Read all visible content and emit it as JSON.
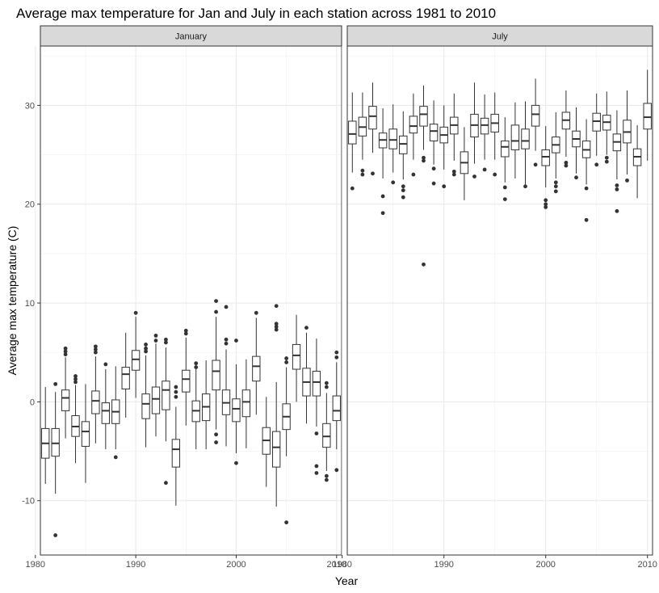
{
  "chart_data": {
    "type": "boxplot",
    "title": "Average max temperature for Jan and July in each station across 1981 to 2010",
    "xlabel": "Year",
    "ylabel": "Average max temperature (C)",
    "xlim": [
      1980.5,
      2010.5
    ],
    "ylim": [
      -15.5,
      36
    ],
    "x_ticks": [
      1980,
      1990,
      2000,
      2010
    ],
    "y_ticks": [
      -10,
      0,
      10,
      20,
      30
    ],
    "grid": true,
    "facets": [
      {
        "label": "January",
        "boxes": [
          {
            "year": 1981,
            "q1": -5.7,
            "median": -4.2,
            "q3": -2.7,
            "low": -8.3,
            "high": 1.5,
            "outliers": []
          },
          {
            "year": 1982,
            "q1": -5.5,
            "median": -4.2,
            "q3": -2.7,
            "low": -9.3,
            "high": 1.0,
            "outliers": [
              1.8,
              -13.5
            ]
          },
          {
            "year": 1983,
            "q1": -0.9,
            "median": 0.4,
            "q3": 1.2,
            "low": -3.7,
            "high": 4.5,
            "outliers": [
              4.8,
              5.1,
              5.4
            ]
          },
          {
            "year": 1984,
            "q1": -3.5,
            "median": -2.5,
            "q3": -1.4,
            "low": -6.2,
            "high": 1.7,
            "outliers": [
              2.0,
              2.3,
              2.6
            ]
          },
          {
            "year": 1985,
            "q1": -4.5,
            "median": -3.0,
            "q3": -2.0,
            "low": -8.2,
            "high": 1.8,
            "outliers": []
          },
          {
            "year": 1986,
            "q1": -1.2,
            "median": 0.1,
            "q3": 1.1,
            "low": -4.2,
            "high": 4.6,
            "outliers": [
              5.0,
              5.3,
              5.6
            ]
          },
          {
            "year": 1987,
            "q1": -2.2,
            "median": -0.9,
            "q3": -0.1,
            "low": -4.8,
            "high": 3.3,
            "outliers": [
              3.8
            ]
          },
          {
            "year": 1988,
            "q1": -2.2,
            "median": -1.0,
            "q3": 0.2,
            "low": -4.8,
            "high": 3.6,
            "outliers": [
              -5.6
            ]
          },
          {
            "year": 1989,
            "q1": 1.3,
            "median": 2.8,
            "q3": 3.5,
            "low": -1.6,
            "high": 7.0,
            "outliers": []
          },
          {
            "year": 1990,
            "q1": 3.2,
            "median": 4.3,
            "q3": 5.2,
            "low": 0.4,
            "high": 8.6,
            "outliers": [
              9.0
            ]
          },
          {
            "year": 1991,
            "q1": -1.7,
            "median": -0.2,
            "q3": 0.8,
            "low": -4.6,
            "high": 4.7,
            "outliers": [
              5.1,
              5.4,
              5.8
            ]
          },
          {
            "year": 1992,
            "q1": -1.2,
            "median": 0.3,
            "q3": 1.5,
            "low": -3.5,
            "high": 5.9,
            "outliers": [
              6.2,
              6.7
            ]
          },
          {
            "year": 1993,
            "q1": -0.8,
            "median": 1.2,
            "q3": 2.1,
            "low": -4.0,
            "high": 5.5,
            "outliers": [
              6.0,
              6.3,
              -8.2
            ]
          },
          {
            "year": 1994,
            "q1": -6.6,
            "median": -4.8,
            "q3": -3.8,
            "low": -10.5,
            "high": -0.5,
            "outliers": [
              0.5,
              1.0,
              1.5
            ]
          },
          {
            "year": 1995,
            "q1": 1.0,
            "median": 2.3,
            "q3": 3.2,
            "low": -2.4,
            "high": 6.5,
            "outliers": [
              6.9,
              7.2
            ]
          },
          {
            "year": 1996,
            "q1": -2.0,
            "median": -0.9,
            "q3": 0.1,
            "low": -4.8,
            "high": 3.3,
            "outliers": [
              3.5,
              3.9
            ]
          },
          {
            "year": 1997,
            "q1": -1.9,
            "median": -0.5,
            "q3": 0.8,
            "low": -4.8,
            "high": 4.2,
            "outliers": []
          },
          {
            "year": 1998,
            "q1": 1.2,
            "median": 3.1,
            "q3": 4.2,
            "low": -2.8,
            "high": 8.6,
            "outliers": [
              9.1,
              10.2,
              -3.3,
              -4.1
            ]
          },
          {
            "year": 1999,
            "q1": -1.3,
            "median": -0.1,
            "q3": 1.2,
            "low": -4.5,
            "high": 5.3,
            "outliers": [
              5.9,
              6.3,
              9.6
            ]
          },
          {
            "year": 2000,
            "q1": -2.0,
            "median": -0.7,
            "q3": 0.3,
            "low": -5.2,
            "high": 3.8,
            "outliers": [
              6.2,
              -6.2
            ]
          },
          {
            "year": 2001,
            "q1": -1.5,
            "median": 0.0,
            "q3": 1.2,
            "low": -4.7,
            "high": 4.3,
            "outliers": []
          },
          {
            "year": 2002,
            "q1": 2.1,
            "median": 3.6,
            "q3": 4.6,
            "low": -1.3,
            "high": 8.5,
            "outliers": [
              9.0
            ]
          },
          {
            "year": 2003,
            "q1": -5.3,
            "median": -3.9,
            "q3": -2.6,
            "low": -8.6,
            "high": 0.5,
            "outliers": []
          },
          {
            "year": 2004,
            "q1": -6.6,
            "median": -4.6,
            "q3": -3.0,
            "low": -10.6,
            "high": 2.0,
            "outliers": [
              7.3,
              7.6,
              7.9,
              9.7
            ]
          },
          {
            "year": 2005,
            "q1": -2.8,
            "median": -1.5,
            "q3": -0.2,
            "low": -5.5,
            "high": 3.5,
            "outliers": [
              4.0,
              4.4,
              -12.2
            ]
          },
          {
            "year": 2006,
            "q1": 3.3,
            "median": 4.7,
            "q3": 5.8,
            "low": 0.0,
            "high": 8.8,
            "outliers": []
          },
          {
            "year": 2007,
            "q1": 0.6,
            "median": 2.0,
            "q3": 3.4,
            "low": -2.2,
            "high": 7.0,
            "outliers": [
              7.5
            ]
          },
          {
            "year": 2008,
            "q1": 0.6,
            "median": 2.0,
            "q3": 3.1,
            "low": -2.5,
            "high": 6.4,
            "outliers": [
              -3.2,
              -6.5,
              -7.2
            ]
          },
          {
            "year": 2009,
            "q1": -4.6,
            "median": -3.5,
            "q3": -2.2,
            "low": -7.0,
            "high": 0.9,
            "outliers": [
              1.5,
              1.9,
              -7.5,
              -7.9
            ]
          },
          {
            "year": 2010,
            "q1": -1.9,
            "median": -0.9,
            "q3": 0.6,
            "low": -4.8,
            "high": 4.0,
            "outliers": [
              4.5,
              5.0,
              -6.9
            ]
          }
        ]
      },
      {
        "label": "July",
        "boxes": [
          {
            "year": 1981,
            "q1": 26.1,
            "median": 27.1,
            "q3": 28.4,
            "low": 23.2,
            "high": 31.3,
            "outliers": [
              21.6
            ]
          },
          {
            "year": 1982,
            "q1": 26.9,
            "median": 27.8,
            "q3": 28.8,
            "low": 24.5,
            "high": 31.3,
            "outliers": [
              23.0,
              23.4
            ]
          },
          {
            "year": 1983,
            "q1": 27.6,
            "median": 28.9,
            "q3": 29.9,
            "low": 25.2,
            "high": 32.3,
            "outliers": [
              23.1
            ]
          },
          {
            "year": 1984,
            "q1": 25.7,
            "median": 26.5,
            "q3": 27.2,
            "low": 22.6,
            "high": 29.7,
            "outliers": [
              20.8,
              19.1
            ]
          },
          {
            "year": 1985,
            "q1": 25.6,
            "median": 26.5,
            "q3": 27.6,
            "low": 23.2,
            "high": 30.1,
            "outliers": [
              22.2
            ]
          },
          {
            "year": 1986,
            "q1": 25.1,
            "median": 26.1,
            "q3": 26.9,
            "low": 22.5,
            "high": 29.4,
            "outliers": [
              21.8,
              21.4,
              20.7
            ]
          },
          {
            "year": 1987,
            "q1": 27.2,
            "median": 27.9,
            "q3": 28.9,
            "low": 24.5,
            "high": 31.2,
            "outliers": [
              23.0
            ]
          },
          {
            "year": 1988,
            "q1": 27.9,
            "median": 29.1,
            "q3": 29.9,
            "low": 25.5,
            "high": 32.0,
            "outliers": [
              24.7,
              24.4,
              13.9
            ]
          },
          {
            "year": 1989,
            "q1": 26.4,
            "median": 27.4,
            "q3": 28.1,
            "low": 24.0,
            "high": 30.5,
            "outliers": [
              23.6,
              22.1
            ]
          },
          {
            "year": 1990,
            "q1": 26.2,
            "median": 27.0,
            "q3": 27.8,
            "low": 23.5,
            "high": 30.0,
            "outliers": [
              21.8
            ]
          },
          {
            "year": 1991,
            "q1": 27.1,
            "median": 28.0,
            "q3": 28.8,
            "low": 24.4,
            "high": 31.2,
            "outliers": [
              23.3,
              23.0
            ]
          },
          {
            "year": 1992,
            "q1": 23.1,
            "median": 24.2,
            "q3": 25.3,
            "low": 20.4,
            "high": 27.8,
            "outliers": []
          },
          {
            "year": 1993,
            "q1": 26.8,
            "median": 28.0,
            "q3": 29.1,
            "low": 24.1,
            "high": 32.3,
            "outliers": [
              22.8
            ]
          },
          {
            "year": 1994,
            "q1": 27.1,
            "median": 28.0,
            "q3": 28.7,
            "low": 24.5,
            "high": 31.1,
            "outliers": [
              23.5
            ]
          },
          {
            "year": 1995,
            "q1": 27.3,
            "median": 28.2,
            "q3": 29.1,
            "low": 24.5,
            "high": 31.3,
            "outliers": [
              23.0
            ]
          },
          {
            "year": 1996,
            "q1": 24.8,
            "median": 25.8,
            "q3": 26.4,
            "low": 22.2,
            "high": 28.8,
            "outliers": [
              21.7,
              20.5
            ]
          },
          {
            "year": 1997,
            "q1": 25.5,
            "median": 26.4,
            "q3": 28.0,
            "low": 22.6,
            "high": 30.3,
            "outliers": []
          },
          {
            "year": 1998,
            "q1": 25.6,
            "median": 26.4,
            "q3": 27.6,
            "low": 22.0,
            "high": 30.4,
            "outliers": [
              21.8
            ]
          },
          {
            "year": 1999,
            "q1": 27.9,
            "median": 29.1,
            "q3": 30.0,
            "low": 25.4,
            "high": 32.7,
            "outliers": [
              24.0
            ]
          },
          {
            "year": 2000,
            "q1": 23.9,
            "median": 24.8,
            "q3": 25.5,
            "low": 21.7,
            "high": 27.9,
            "outliers": [
              20.4,
              20.0,
              19.7
            ]
          },
          {
            "year": 2001,
            "q1": 25.2,
            "median": 26.0,
            "q3": 26.8,
            "low": 22.6,
            "high": 29.3,
            "outliers": [
              22.2,
              21.8,
              21.3
            ]
          },
          {
            "year": 2002,
            "q1": 27.6,
            "median": 28.5,
            "q3": 29.3,
            "low": 24.8,
            "high": 31.5,
            "outliers": [
              24.2,
              23.9
            ]
          },
          {
            "year": 2003,
            "q1": 25.8,
            "median": 26.6,
            "q3": 27.4,
            "low": 23.1,
            "high": 29.8,
            "outliers": [
              22.7
            ]
          },
          {
            "year": 2004,
            "q1": 24.7,
            "median": 25.5,
            "q3": 26.4,
            "low": 22.0,
            "high": 28.6,
            "outliers": [
              21.6,
              18.4
            ]
          },
          {
            "year": 2005,
            "q1": 27.4,
            "median": 28.4,
            "q3": 29.2,
            "low": 24.9,
            "high": 31.2,
            "outliers": [
              24.0
            ]
          },
          {
            "year": 2006,
            "q1": 27.5,
            "median": 28.3,
            "q3": 29.0,
            "low": 25.0,
            "high": 31.4,
            "outliers": [
              24.7,
              24.3
            ]
          },
          {
            "year": 2007,
            "q1": 25.4,
            "median": 26.3,
            "q3": 27.1,
            "low": 22.5,
            "high": 29.5,
            "outliers": [
              21.9,
              21.5,
              19.3
            ]
          },
          {
            "year": 2008,
            "q1": 26.2,
            "median": 27.3,
            "q3": 28.5,
            "low": 23.0,
            "high": 31.5,
            "outliers": [
              22.4
            ]
          },
          {
            "year": 2009,
            "q1": 23.9,
            "median": 24.8,
            "q3": 25.6,
            "low": 20.6,
            "high": 28.0,
            "outliers": []
          },
          {
            "year": 2010,
            "q1": 27.6,
            "median": 28.8,
            "q3": 30.2,
            "low": 24.4,
            "high": 33.6,
            "outliers": []
          }
        ]
      }
    ]
  }
}
